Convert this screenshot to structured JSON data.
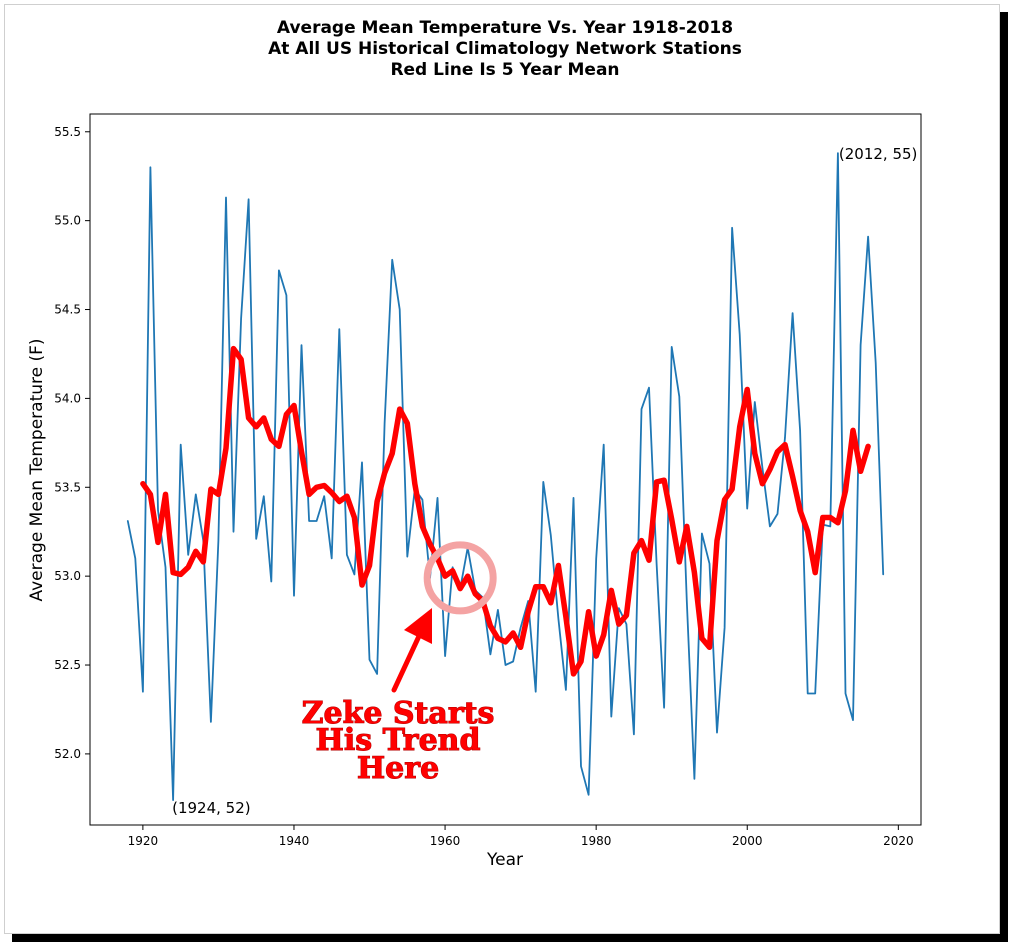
{
  "chart_data": {
    "type": "line",
    "title_lines": [
      "Average Mean Temperature Vs. Year 1918-2018",
      "At All US Historical Climatology Network Stations",
      "Red Line Is 5 Year Mean"
    ],
    "xlabel": "Year",
    "ylabel": "Average Mean Temperature (F)",
    "xlim": [
      1913,
      2023
    ],
    "ylim": [
      51.6,
      55.6
    ],
    "xticks": [
      "1920",
      "1940",
      "1960",
      "1980",
      "2000",
      "2020"
    ],
    "yticks": [
      "52.0",
      "52.5",
      "53.0",
      "53.5",
      "54.0",
      "54.5",
      "55.0",
      "55.5"
    ],
    "grid": false,
    "series": [
      {
        "color": "#1f77b4",
        "x": [
          1918,
          1919,
          1920,
          1921,
          1922,
          1923,
          1924,
          1925,
          1926,
          1927,
          1928,
          1929,
          1930,
          1931,
          1932,
          1933,
          1934,
          1935,
          1936,
          1937,
          1938,
          1939,
          1940,
          1941,
          1942,
          1943,
          1944,
          1945,
          1946,
          1947,
          1948,
          1949,
          1950,
          1951,
          1952,
          1953,
          1954,
          1955,
          1956,
          1957,
          1958,
          1959,
          1960,
          1961,
          1962,
          1963,
          1964,
          1965,
          1966,
          1967,
          1968,
          1969,
          1970,
          1971,
          1972,
          1973,
          1974,
          1975,
          1976,
          1977,
          1978,
          1979,
          1980,
          1981,
          1982,
          1983,
          1984,
          1985,
          1986,
          1987,
          1988,
          1989,
          1990,
          1991,
          1992,
          1993,
          1994,
          1995,
          1996,
          1997,
          1998,
          1999,
          2000,
          2001,
          2002,
          2003,
          2004,
          2005,
          2006,
          2007,
          2008,
          2009,
          2010,
          2011,
          2012,
          2013,
          2014,
          2015,
          2016,
          2017,
          2018
        ],
        "y": [
          53.31,
          53.1,
          52.35,
          55.3,
          53.37,
          53.05,
          51.74,
          53.74,
          53.12,
          53.46,
          53.2,
          52.18,
          53.2,
          55.13,
          53.25,
          54.45,
          55.12,
          53.21,
          53.45,
          52.97,
          54.72,
          54.58,
          52.89,
          54.3,
          53.31,
          53.31,
          53.45,
          53.1,
          54.39,
          53.12,
          53.01,
          53.64,
          52.53,
          52.45,
          53.86,
          54.78,
          54.5,
          53.11,
          53.49,
          53.43,
          52.99,
          53.44,
          52.55,
          53.05,
          52.93,
          53.16,
          52.92,
          52.88,
          52.56,
          52.81,
          52.5,
          52.52,
          52.71,
          52.86,
          52.35,
          53.53,
          53.23,
          52.76,
          52.36,
          53.44,
          51.93,
          51.77,
          53.1,
          53.74,
          52.21,
          52.82,
          52.73,
          52.11,
          53.94,
          54.06,
          53.07,
          52.26,
          54.29,
          54.01,
          52.86,
          51.86,
          53.24,
          53.07,
          52.12,
          52.71,
          54.96,
          54.36,
          53.38,
          53.98,
          53.61,
          53.28,
          53.35,
          53.78,
          54.48,
          53.82,
          52.34,
          52.34,
          53.29,
          53.28,
          55.38,
          52.34,
          52.19,
          54.3,
          54.91,
          54.2,
          53.01
        ]
      },
      {
        "name": "5 Year Mean",
        "color": "#ff0000",
        "x": [
          1920,
          1921,
          1922,
          1923,
          1924,
          1925,
          1926,
          1927,
          1928,
          1929,
          1930,
          1931,
          1932,
          1933,
          1934,
          1935,
          1936,
          1937,
          1938,
          1939,
          1940,
          1941,
          1942,
          1943,
          1944,
          1945,
          1946,
          1947,
          1948,
          1949,
          1950,
          1951,
          1952,
          1953,
          1954,
          1955,
          1956,
          1957,
          1958,
          1959,
          1960,
          1961,
          1962,
          1963,
          1964,
          1965,
          1966,
          1967,
          1968,
          1969,
          1970,
          1971,
          1972,
          1973,
          1974,
          1975,
          1976,
          1977,
          1978,
          1979,
          1980,
          1981,
          1982,
          1983,
          1984,
          1985,
          1986,
          1987,
          1988,
          1989,
          1990,
          1991,
          1992,
          1993,
          1994,
          1995,
          1996,
          1997,
          1998,
          1999,
          2000,
          2001,
          2002,
          2003,
          2004,
          2005,
          2006,
          2007,
          2008,
          2009,
          2010,
          2011,
          2012,
          2013,
          2014,
          2015,
          2016
        ],
        "y": [
          53.52,
          53.46,
          53.19,
          53.46,
          53.02,
          53.01,
          53.05,
          53.14,
          53.08,
          53.49,
          53.46,
          53.72,
          54.28,
          54.22,
          53.89,
          53.84,
          53.89,
          53.77,
          53.73,
          53.91,
          53.96,
          53.7,
          53.46,
          53.5,
          53.51,
          53.47,
          53.42,
          53.45,
          53.33,
          52.95,
          53.06,
          53.42,
          53.58,
          53.69,
          53.94,
          53.86,
          53.52,
          53.28,
          53.18,
          53.1,
          53.0,
          53.03,
          52.93,
          53.0,
          52.9,
          52.86,
          52.72,
          52.65,
          52.63,
          52.68,
          52.6,
          52.8,
          52.94,
          52.94,
          52.85,
          53.06,
          52.77,
          52.45,
          52.52,
          52.8,
          52.55,
          52.67,
          52.92,
          52.73,
          52.78,
          53.13,
          53.2,
          53.09,
          53.53,
          53.54,
          53.32,
          53.08,
          53.28,
          53.02,
          52.65,
          52.6,
          53.2,
          53.43,
          53.49,
          53.84,
          54.05,
          53.69,
          53.52,
          53.6,
          53.7,
          53.74,
          53.56,
          53.37,
          53.25,
          53.02,
          53.33,
          53.33,
          53.3,
          53.48,
          53.82,
          53.59,
          53.73
        ]
      }
    ],
    "annotations": [
      {
        "text": "(2012, 55)",
        "x": 2012,
        "y": 55.38
      },
      {
        "text": "(1924, 52)",
        "x": 1924,
        "y": 51.74
      }
    ],
    "callout": {
      "lines": [
        "Zeke Starts",
        "His Trend",
        "Here"
      ],
      "target": {
        "x": 1962,
        "y": 52.99
      },
      "ring_color": "#f4a3a3",
      "arrow_color": "#ff0000"
    }
  }
}
